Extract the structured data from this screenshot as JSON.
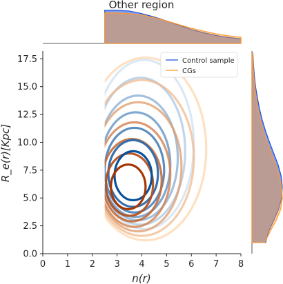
{
  "chart_data": {
    "type": "contour",
    "title": "Other region",
    "xlabel": "n(r)",
    "ylabel": "R_e(r)[Kpc]",
    "xlim": [
      0,
      8
    ],
    "ylim": [
      0,
      18.2
    ],
    "xticks": [
      "0",
      "1",
      "2",
      "3",
      "4",
      "5",
      "6",
      "7",
      "8"
    ],
    "yticks": [
      "0.0",
      "2.5",
      "5.0",
      "7.5",
      "10.0",
      "12.5",
      "15.0",
      "17.5"
    ],
    "grid": false,
    "legend": {
      "position": "top-right"
    },
    "series": [
      {
        "name": "Control sample",
        "color": "#1f4fd8",
        "contour_color_dark": "#08519c",
        "contour_color_light": "#c6dbef",
        "contours": [
          {
            "level": 1,
            "cx": 3.65,
            "cy": 7.0,
            "rx": 0.75,
            "ry": 2.2
          },
          {
            "level": 2,
            "cx": 3.65,
            "cy": 7.2,
            "rx": 1.0,
            "ry": 3.0
          },
          {
            "level": 3,
            "cx": 3.7,
            "cy": 7.5,
            "rx": 1.2,
            "ry": 3.8
          },
          {
            "level": 4,
            "cx": 3.75,
            "cy": 8.0,
            "rx": 1.4,
            "ry": 4.7
          },
          {
            "level": 5,
            "cx": 3.85,
            "cy": 8.6,
            "rx": 1.6,
            "ry": 5.6
          },
          {
            "level": 6,
            "cx": 3.95,
            "cy": 9.2,
            "rx": 1.8,
            "ry": 6.6
          },
          {
            "level": 7,
            "cx": 4.1,
            "cy": 9.8,
            "rx": 2.0,
            "ry": 7.6
          }
        ],
        "marginal_x": {
          "x": [
            2.5,
            3.0,
            3.5,
            4.0,
            4.5,
            5.0,
            5.5,
            6.0,
            6.5,
            7.0,
            7.5,
            8.0
          ],
          "density": [
            1.0,
            1.0,
            0.98,
            0.9,
            0.8,
            0.68,
            0.55,
            0.42,
            0.32,
            0.24,
            0.18,
            0.14
          ]
        },
        "marginal_y": {
          "y": [
            1.0,
            2.0,
            3.0,
            4.0,
            5.0,
            6.0,
            7.0,
            8.0,
            9.0,
            10.0,
            11.0,
            12.0,
            13.0,
            14.0,
            15.0,
            16.0,
            17.0,
            18.0
          ],
          "density": [
            0.45,
            0.55,
            0.72,
            0.88,
            0.98,
            1.0,
            0.96,
            0.86,
            0.72,
            0.58,
            0.45,
            0.34,
            0.25,
            0.18,
            0.12,
            0.08,
            0.05,
            0.03
          ]
        }
      },
      {
        "name": "CGs",
        "color": "#ff9a2e",
        "contour_color_dark": "#a63603",
        "contour_color_light": "#fdd0a2",
        "contours": [
          {
            "level": 1,
            "cx": 3.45,
            "cy": 6.0,
            "rx": 0.7,
            "ry": 2.0
          },
          {
            "level": 2,
            "cx": 3.5,
            "cy": 6.2,
            "rx": 0.95,
            "ry": 2.8
          },
          {
            "level": 3,
            "cx": 3.6,
            "cy": 6.6,
            "rx": 1.2,
            "ry": 3.7
          },
          {
            "level": 4,
            "cx": 3.7,
            "cy": 7.1,
            "rx": 1.45,
            "ry": 4.7
          },
          {
            "level": 5,
            "cx": 3.85,
            "cy": 7.8,
            "rx": 1.75,
            "ry": 5.8
          },
          {
            "level": 6,
            "cx": 4.0,
            "cy": 8.6,
            "rx": 2.1,
            "ry": 7.0
          },
          {
            "level": 7,
            "cx": 4.15,
            "cy": 9.4,
            "rx": 2.45,
            "ry": 8.2
          }
        ],
        "marginal_x": {
          "x": [
            2.5,
            3.0,
            3.5,
            4.0,
            4.5,
            5.0,
            5.5,
            6.0,
            6.5,
            7.0,
            7.5,
            8.0
          ],
          "density": [
            0.92,
            0.92,
            0.9,
            0.86,
            0.78,
            0.68,
            0.57,
            0.46,
            0.37,
            0.29,
            0.23,
            0.19
          ]
        },
        "marginal_y": {
          "y": [
            1.0,
            2.0,
            3.0,
            4.0,
            5.0,
            6.0,
            7.0,
            8.0,
            9.0,
            10.0,
            11.0,
            12.0,
            13.0,
            14.0,
            15.0,
            16.0,
            17.0,
            18.0
          ],
          "density": [
            0.42,
            0.6,
            0.8,
            0.95,
            1.0,
            0.98,
            0.9,
            0.78,
            0.64,
            0.5,
            0.38,
            0.28,
            0.2,
            0.14,
            0.1,
            0.06,
            0.04,
            0.02
          ]
        }
      }
    ]
  }
}
